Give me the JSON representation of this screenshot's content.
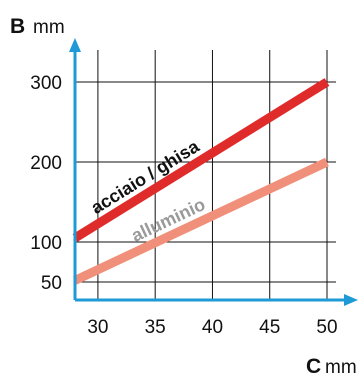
{
  "chart_data": {
    "type": "line",
    "ylabel": {
      "letter": "B",
      "unit": "mm"
    },
    "xlabel": {
      "letter": "C",
      "unit": "mm"
    },
    "x_ticks": [
      "30",
      "35",
      "40",
      "45",
      "50"
    ],
    "y_ticks": [
      "300",
      "200",
      "100",
      "50"
    ],
    "xlim": [
      28,
      50
    ],
    "ylim": [
      40,
      300
    ],
    "grid": true,
    "legend": "inline labels on lines",
    "series": [
      {
        "name": "acciaio / ghisa",
        "color": "#e02b2b",
        "label_color": "#111111",
        "x": [
          28,
          50
        ],
        "y": [
          105,
          300
        ]
      },
      {
        "name": "alluminio",
        "color": "#f0907a",
        "label_color": "#9a9a9a",
        "x": [
          28,
          50
        ],
        "y": [
          52,
          200
        ]
      }
    ],
    "axis_color": "#1e9ad6"
  }
}
